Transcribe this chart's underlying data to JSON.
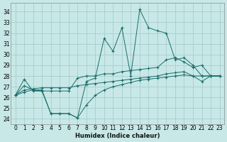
{
  "xlabel": "Humidex (Indice chaleur)",
  "background_color": "#c8e8e8",
  "grid_color": "#a8cccc",
  "line_color": "#1a6e6a",
  "xlim": [
    -0.5,
    23.5
  ],
  "ylim": [
    23.5,
    34.8
  ],
  "yticks": [
    24,
    25,
    26,
    27,
    28,
    29,
    30,
    31,
    32,
    33,
    34
  ],
  "xticks": [
    0,
    1,
    2,
    3,
    4,
    5,
    6,
    7,
    8,
    9,
    10,
    11,
    12,
    13,
    14,
    15,
    16,
    17,
    18,
    19,
    20,
    21,
    22,
    23
  ],
  "series": [
    [
      26.2,
      27.7,
      26.6,
      26.6,
      24.5,
      24.5,
      24.5,
      24.1,
      27.5,
      27.8,
      31.5,
      30.3,
      32.5,
      28.0,
      34.2,
      32.5,
      32.2,
      32.0,
      29.5,
      29.7,
      29.0,
      28.0,
      28.0,
      28.0
    ],
    [
      26.2,
      27.1,
      26.7,
      26.6,
      26.6,
      26.6,
      26.6,
      27.8,
      28.0,
      28.0,
      28.2,
      28.2,
      28.4,
      28.5,
      28.6,
      28.7,
      28.8,
      29.5,
      29.7,
      29.3,
      28.8,
      29.0,
      28.0,
      28.0
    ],
    [
      26.2,
      26.7,
      26.8,
      26.9,
      26.9,
      26.9,
      26.9,
      27.1,
      27.2,
      27.3,
      27.4,
      27.5,
      27.6,
      27.7,
      27.8,
      27.9,
      28.0,
      28.2,
      28.3,
      28.4,
      28.0,
      28.0,
      28.0,
      28.0
    ],
    [
      26.2,
      26.5,
      26.7,
      26.7,
      24.5,
      24.5,
      24.5,
      24.1,
      25.3,
      26.2,
      26.7,
      27.0,
      27.2,
      27.4,
      27.6,
      27.7,
      27.8,
      27.9,
      28.0,
      28.1,
      28.0,
      27.5,
      28.0,
      28.0
    ]
  ]
}
